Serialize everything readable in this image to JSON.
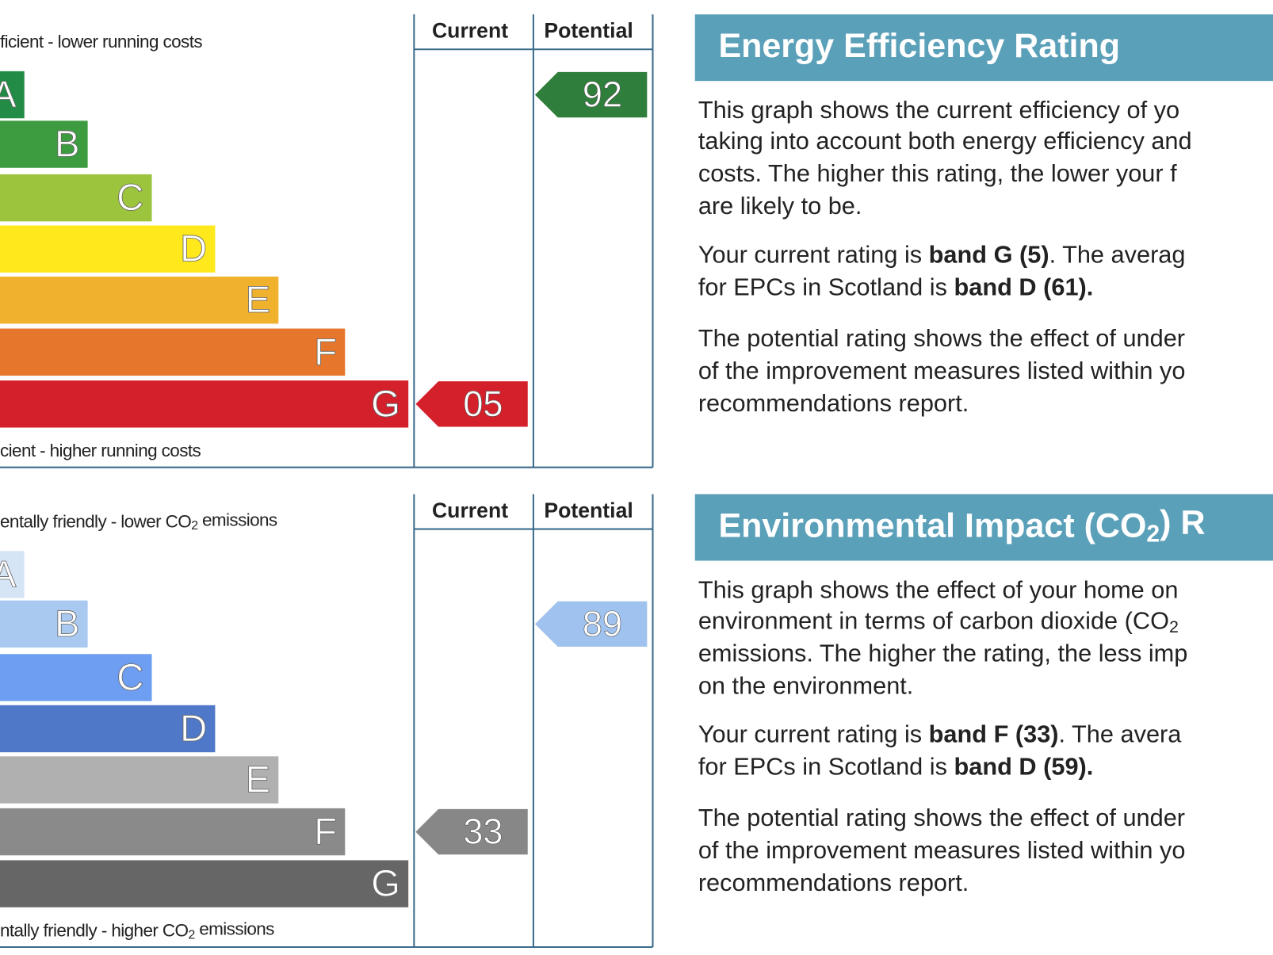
{
  "panels": [
    {
      "scale": {
        "top_label": [
          "ficient - lower running costs"
        ],
        "bottom_label": [
          "cient - higher running costs"
        ],
        "headers": [
          "Current",
          "Potential"
        ],
        "bands": [
          {
            "letter": "A",
            "color": "#228b45"
          },
          {
            "letter": "B",
            "color": "#3d9c40"
          },
          {
            "letter": "C",
            "color": "#9dc43d"
          },
          {
            "letter": "D",
            "color": "#ffe81c"
          },
          {
            "letter": "E",
            "color": "#f0b12c"
          },
          {
            "letter": "F",
            "color": "#e5762b"
          },
          {
            "letter": "G",
            "color": "#d4202b"
          }
        ],
        "current": {
          "text": "05",
          "color": "#d4202b"
        },
        "potential": {
          "text": "92",
          "color": "#2f7e3b"
        }
      },
      "info": {
        "title": [
          "Energy Efficiency Rating"
        ],
        "paragraphs": [
          [
            [
              "This graph shows the current efficiency of yo"
            ],
            [
              "taking into account both energy efficiency and"
            ],
            [
              "costs. The higher this rating, the lower your f"
            ],
            [
              "are likely to be."
            ]
          ],
          [
            [
              "Your current rating is ",
              {
                "text": "band G (5)",
                "b": true
              },
              ". The averag"
            ],
            [
              "for EPCs in Scotland is ",
              {
                "text": "band D (61).",
                "b": true
              }
            ]
          ],
          [
            [
              "The potential rating shows the effect of under"
            ],
            [
              "of the improvement measures listed within yo"
            ],
            [
              "recommendations report."
            ]
          ]
        ]
      }
    },
    {
      "scale": {
        "top_label": [
          "entally friendly - lower CO",
          {
            "text": "2",
            "sub": true
          },
          " emissions"
        ],
        "bottom_label": [
          "ntally friendly - higher CO",
          {
            "text": "2",
            "sub": true
          },
          " emissions"
        ],
        "headers": [
          "Current",
          "Potential"
        ],
        "bands": [
          {
            "letter": "A",
            "color": "#d6e5f6"
          },
          {
            "letter": "B",
            "color": "#a9c9f0"
          },
          {
            "letter": "C",
            "color": "#6e9ef2"
          },
          {
            "letter": "D",
            "color": "#5078c8"
          },
          {
            "letter": "E",
            "color": "#b0b0b0"
          },
          {
            "letter": "F",
            "color": "#8a8a8a"
          },
          {
            "letter": "G",
            "color": "#666666"
          }
        ],
        "current": {
          "text": "33",
          "color": "#878787"
        },
        "potential": {
          "text": "89",
          "color": "#a0c2ef"
        }
      },
      "info": {
        "title": [
          "Environmental Impact (CO",
          {
            "text": "2",
            "sub": true
          },
          ") R"
        ],
        "paragraphs": [
          [
            [
              "This graph shows the effect of your home on"
            ],
            [
              "environment in terms of carbon dioxide (CO",
              {
                "text": "2",
                "sub": true
              }
            ],
            [
              "emissions. The higher the rating, the less imp"
            ],
            [
              "on the environment."
            ]
          ],
          [
            [
              "Your current rating is ",
              {
                "text": "band F (33)",
                "b": true
              },
              ". The avera"
            ],
            [
              "for EPCs in Scotland is ",
              {
                "text": "band D (59).",
                "b": true
              }
            ]
          ],
          [
            [
              "The potential rating shows the effect of under"
            ],
            [
              "of the improvement measures listed within yo"
            ],
            [
              "recommendations report."
            ]
          ]
        ]
      }
    }
  ]
}
